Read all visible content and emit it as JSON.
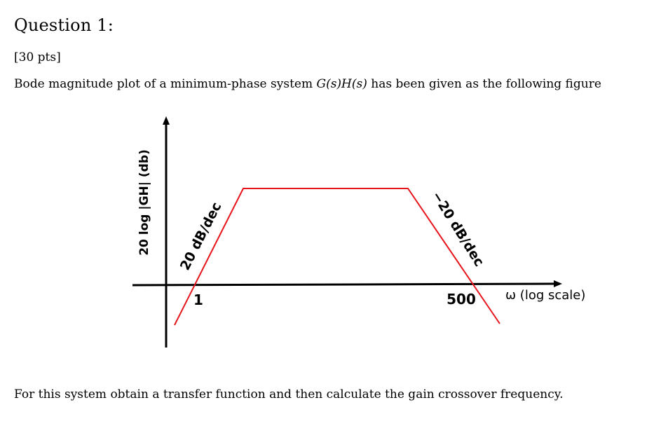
{
  "question": {
    "title": "Question 1:",
    "points": "[30 pts]",
    "intro_prefix": "Bode magnitude plot of a minimum-phase system ",
    "intro_math": "G(s)H(s)",
    "intro_suffix": " has been given as the following figure",
    "followup": "For this system obtain a transfer function and then calculate the gain crossover frequency."
  },
  "chart_data": {
    "type": "line",
    "ylabel": "20 log |GH| (db)",
    "xlabel": "ω (log scale)",
    "x_log_scale": true,
    "x_tick_labels": [
      "1",
      "500"
    ],
    "slope_labels": [
      "20 dB/dec",
      "−20 dB/dec"
    ],
    "grid": false,
    "series": [
      {
        "color": "#e8141b",
        "segments": [
          "rising +20 dB/dec, crossing 0 dB at ω = 1",
          "flat",
          "falling −20 dB/dec, crossing 0 dB at ω = 500"
        ]
      }
    ],
    "axis_color": "#000000"
  }
}
